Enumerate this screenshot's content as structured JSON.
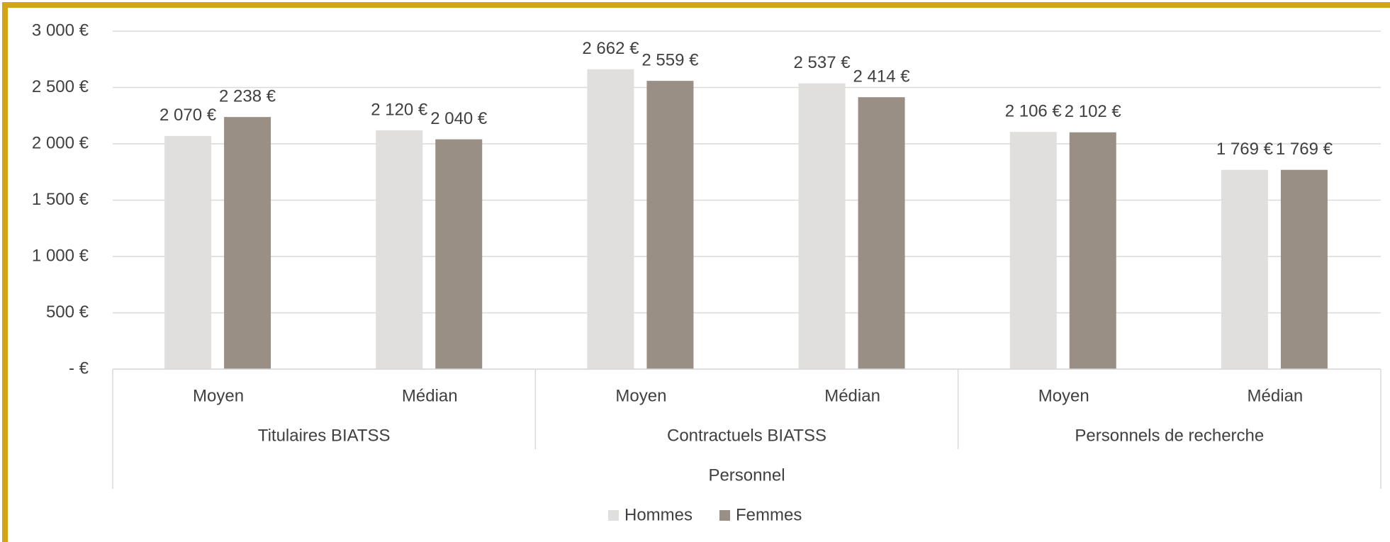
{
  "chart_data": {
    "type": "bar",
    "categories": [
      "Moyen",
      "Médian",
      "Moyen",
      "Médian",
      "Moyen",
      "Médian"
    ],
    "groups": [
      "Titulaires BIATSS",
      "Contractuels BIATSS",
      "Personnels de recherche"
    ],
    "x_label": "Personnel",
    "series": [
      {
        "name": "Hommes",
        "color": "#e0dfdd",
        "values": [
          2070,
          2120,
          2662,
          2537,
          2106,
          1769
        ],
        "value_labels": [
          "2 070 €",
          "2 120 €",
          "2 662 €",
          "2 537 €",
          "2 106 €",
          "1 769 €"
        ]
      },
      {
        "name": "Femmes",
        "color": "#9a8f85",
        "values": [
          2238,
          2040,
          2559,
          2414,
          2102,
          1769
        ],
        "value_labels": [
          "2 238 €",
          "2 040 €",
          "2 559 €",
          "2 414 €",
          "2 102 €",
          "1 769 €"
        ]
      }
    ],
    "ylim": [
      0,
      3000
    ],
    "yticks": [
      {
        "value": 0,
        "label": "-  €"
      },
      {
        "value": 500,
        "label": "500 €"
      },
      {
        "value": 1000,
        "label": "1 000 €"
      },
      {
        "value": 1500,
        "label": "1 500 €"
      },
      {
        "value": 2000,
        "label": "2 000 €"
      },
      {
        "value": 2500,
        "label": "2 500 €"
      },
      {
        "value": 3000,
        "label": "3 000 €"
      }
    ],
    "grid": true,
    "legend": "bottom"
  }
}
